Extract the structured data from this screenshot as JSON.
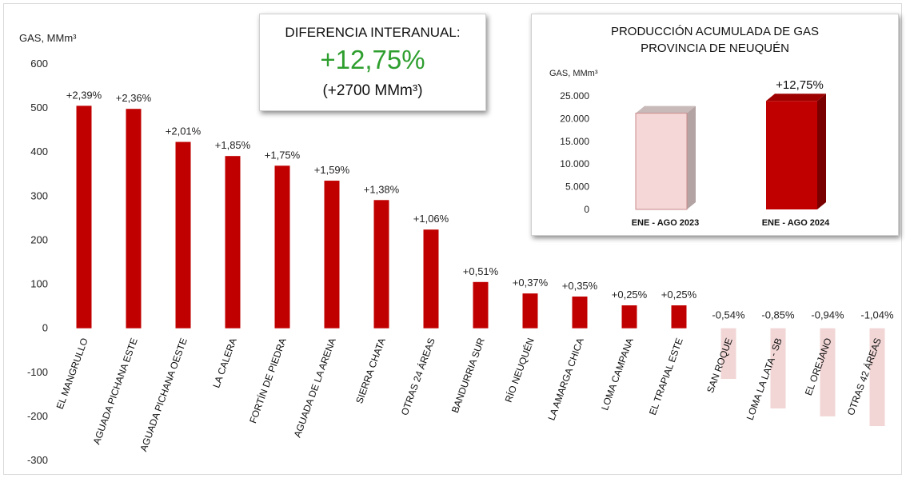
{
  "chart_data": [
    {
      "type": "bar",
      "ylabel": "GAS, MMm³",
      "ylim": [
        -300,
        600
      ],
      "yticks": [
        "600",
        "500",
        "400",
        "300",
        "200",
        "100",
        "0",
        "-100",
        "-200",
        "-300"
      ],
      "grid": false,
      "colors": {
        "positive": "#c00000",
        "negative": "#f2d6d6"
      },
      "categories": [
        "EL MANGRULLO",
        "AGUADA PICHANA ESTE",
        "AGUADA PICHANA OESTE",
        "LA CALERA",
        "FORTÍN DE PIEDRA",
        "AGUADA DE LA ARENA",
        "SIERRA CHATA",
        "OTRAS 24 ÁREAS",
        "BANDURRIA SUR",
        "RÍO NEUQUÉN",
        "LA AMARGA CHICA",
        "LOMA CAMPANA",
        "EL TRAPIAL ESTE",
        "SAN ROQUE",
        "LOMA LA LATA - SB",
        "EL OREJANO",
        "OTRAS 42 ÁREAS"
      ],
      "values": [
        505,
        498,
        423,
        391,
        369,
        335,
        291,
        224,
        105,
        79,
        72,
        52,
        52,
        -115,
        -182,
        -200,
        -222
      ],
      "data_labels": [
        "+2,39%",
        "+2,36%",
        "+2,01%",
        "+1,85%",
        "+1,75%",
        "+1,59%",
        "+1,38%",
        "+1,06%",
        "+0,51%",
        "+0,37%",
        "+0,35%",
        "+0,25%",
        "+0,25%",
        "-0,54%",
        "-0,85%",
        "-0,94%",
        "-1,04%"
      ]
    },
    {
      "type": "bar",
      "title": "PRODUCCIÓN ACUMULADA DE GAS\nPROVINCIA DE NEUQUÉN",
      "title_lines": [
        "PRODUCCIÓN ACUMULADA DE GAS",
        "PROVINCIA DE NEUQUÉN"
      ],
      "ylabel": "GAS, MMm³",
      "ylim": [
        0,
        25000
      ],
      "yticks": [
        "25.000",
        "20.000",
        "15.000",
        "10.000",
        "5.000",
        "0"
      ],
      "categories": [
        "ENE - AGO 2023",
        "ENE - AGO 2024"
      ],
      "values": [
        21200,
        23900
      ],
      "data_labels": [
        "",
        "+12,75%"
      ],
      "colors": [
        "#f5d7d7",
        "#c00000"
      ]
    }
  ],
  "summary": {
    "title": "DIFERENCIA INTERANUAL:",
    "percent": "+12,75%",
    "absolute": "(+2700 MMm³)",
    "percent_color": "#2e9e2e"
  }
}
